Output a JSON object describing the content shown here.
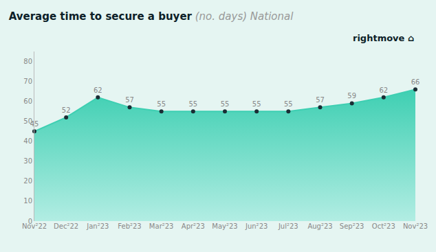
{
  "chart_data": {
    "type": "line",
    "title": "Average time to secure a buyer",
    "subtitle": "(no. days) National",
    "annotations": [
      "rightmove",
      "⌂"
    ],
    "categories": [
      "Nov²22",
      "Dec²22",
      "Jan²23",
      "Feb²23",
      "Mar²23",
      "Apr²23",
      "May²23",
      "Jun²23",
      "Jul²23",
      "Aug²23",
      "Sep²23",
      "Oct²23",
      "Nov²23"
    ],
    "values": [
      45,
      52,
      62,
      57,
      55,
      55,
      55,
      55,
      55,
      57,
      59,
      62,
      66
    ],
    "color": "#3ecfb2",
    "marker": "circle",
    "ylim": [
      0,
      85
    ],
    "yticks": [
      0,
      10,
      20,
      30,
      40,
      50,
      60,
      70,
      80
    ],
    "grid": false,
    "data_labels": true
  }
}
